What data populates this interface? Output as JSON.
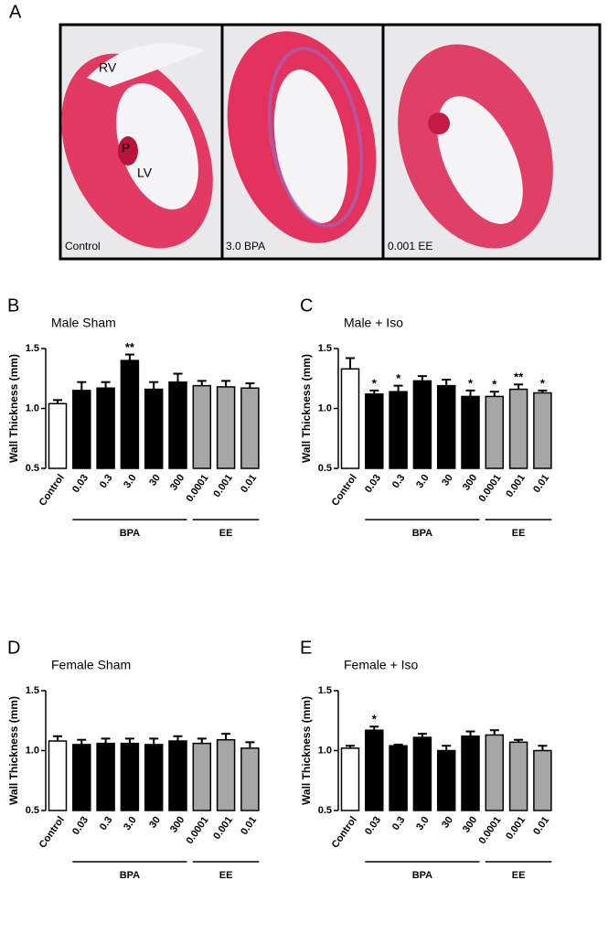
{
  "panel_a": {
    "panel": "A",
    "labels": [
      "RV",
      "P",
      "LV"
    ],
    "captions": [
      "Control",
      "3.0 BPA",
      "0.001 EE"
    ]
  },
  "chart_data": [
    {
      "type": "bar",
      "panel": "B",
      "title": "Male Sham",
      "ylabel": "Wall Thickness (mm)",
      "categories": [
        "Control",
        "0.03",
        "0.3",
        "3.0",
        "30",
        "300",
        "0.0001",
        "0.001",
        "0.01"
      ],
      "values": [
        1.04,
        1.15,
        1.17,
        1.4,
        1.16,
        1.22,
        1.19,
        1.18,
        1.17
      ],
      "errors": [
        0.03,
        0.07,
        0.05,
        0.05,
        0.06,
        0.07,
        0.04,
        0.05,
        0.04
      ],
      "significance": [
        null,
        null,
        null,
        "**",
        null,
        null,
        null,
        null,
        null
      ],
      "colors": [
        "#ffffff",
        "#000000",
        "#000000",
        "#000000",
        "#000000",
        "#000000",
        "#a6a6a6",
        "#a6a6a6",
        "#a6a6a6"
      ],
      "groups": [
        {
          "label": "BPA",
          "span": [
            1,
            5
          ]
        },
        {
          "label": "EE",
          "span": [
            6,
            8
          ]
        }
      ],
      "ylim": [
        0.5,
        1.5
      ],
      "yticks": [
        0.5,
        {
          "value": 1,
          "label": "1.0"
        },
        1.5
      ]
    },
    {
      "type": "bar",
      "panel": "C",
      "title": "Male + Iso",
      "ylabel": "Wall Thickness (mm)",
      "categories": [
        "Control",
        "0.03",
        "0.3",
        "3.0",
        "30",
        "300",
        "0.0001",
        "0.001",
        "0.01"
      ],
      "values": [
        1.33,
        1.12,
        1.14,
        1.23,
        1.19,
        1.1,
        1.1,
        1.16,
        1.13
      ],
      "errors": [
        0.09,
        0.03,
        0.05,
        0.04,
        0.05,
        0.05,
        0.04,
        0.04,
        0.02
      ],
      "significance": [
        null,
        "*",
        "*",
        null,
        null,
        "*",
        "*",
        "**",
        "*"
      ],
      "colors": [
        "#ffffff",
        "#000000",
        "#000000",
        "#000000",
        "#000000",
        "#000000",
        "#a6a6a6",
        "#a6a6a6",
        "#a6a6a6"
      ],
      "groups": [
        {
          "label": "BPA",
          "span": [
            1,
            5
          ]
        },
        {
          "label": "EE",
          "span": [
            6,
            8
          ]
        }
      ],
      "ylim": [
        0.5,
        1.5
      ],
      "yticks": [
        0.5,
        {
          "value": 1,
          "label": "1.0"
        },
        1.5
      ]
    },
    {
      "type": "bar",
      "panel": "D",
      "title": "Female Sham",
      "ylabel": "Wall Thickness (mm)",
      "categories": [
        "Control",
        "0.03",
        "0.3",
        "3.0",
        "30",
        "300",
        "0.0001",
        "0.001",
        "0.01"
      ],
      "values": [
        1.08,
        1.05,
        1.06,
        1.06,
        1.05,
        1.08,
        1.06,
        1.09,
        1.02
      ],
      "errors": [
        0.04,
        0.04,
        0.04,
        0.04,
        0.05,
        0.04,
        0.04,
        0.05,
        0.05
      ],
      "significance": [
        null,
        null,
        null,
        null,
        null,
        null,
        null,
        null,
        null
      ],
      "colors": [
        "#ffffff",
        "#000000",
        "#000000",
        "#000000",
        "#000000",
        "#000000",
        "#a6a6a6",
        "#a6a6a6",
        "#a6a6a6"
      ],
      "groups": [
        {
          "label": "BPA",
          "span": [
            1,
            5
          ]
        },
        {
          "label": "EE",
          "span": [
            6,
            8
          ]
        }
      ],
      "ylim": [
        0.5,
        1.5
      ],
      "yticks": [
        0.5,
        {
          "value": 1,
          "label": "1.0"
        },
        1.5
      ]
    },
    {
      "type": "bar",
      "panel": "E",
      "title": "Female + Iso",
      "ylabel": "Wall Thickness (mm)",
      "categories": [
        "Control",
        "0.03",
        "0.3",
        "3.0",
        "30",
        "300",
        "0.0001",
        "0.001",
        "0.01"
      ],
      "values": [
        1.02,
        1.17,
        1.04,
        1.11,
        1.0,
        1.12,
        1.13,
        1.07,
        1.0
      ],
      "errors": [
        0.02,
        0.03,
        0.01,
        0.03,
        0.04,
        0.04,
        0.04,
        0.02,
        0.04
      ],
      "significance": [
        null,
        "*",
        null,
        null,
        null,
        null,
        null,
        null,
        null
      ],
      "colors": [
        "#ffffff",
        "#000000",
        "#000000",
        "#000000",
        "#000000",
        "#000000",
        "#a6a6a6",
        "#a6a6a6",
        "#a6a6a6"
      ],
      "groups": [
        {
          "label": "BPA",
          "span": [
            1,
            5
          ]
        },
        {
          "label": "EE",
          "span": [
            6,
            8
          ]
        }
      ],
      "ylim": [
        0.5,
        1.5
      ],
      "yticks": [
        0.5,
        {
          "value": 1,
          "label": "1.0"
        },
        1.5
      ]
    }
  ]
}
